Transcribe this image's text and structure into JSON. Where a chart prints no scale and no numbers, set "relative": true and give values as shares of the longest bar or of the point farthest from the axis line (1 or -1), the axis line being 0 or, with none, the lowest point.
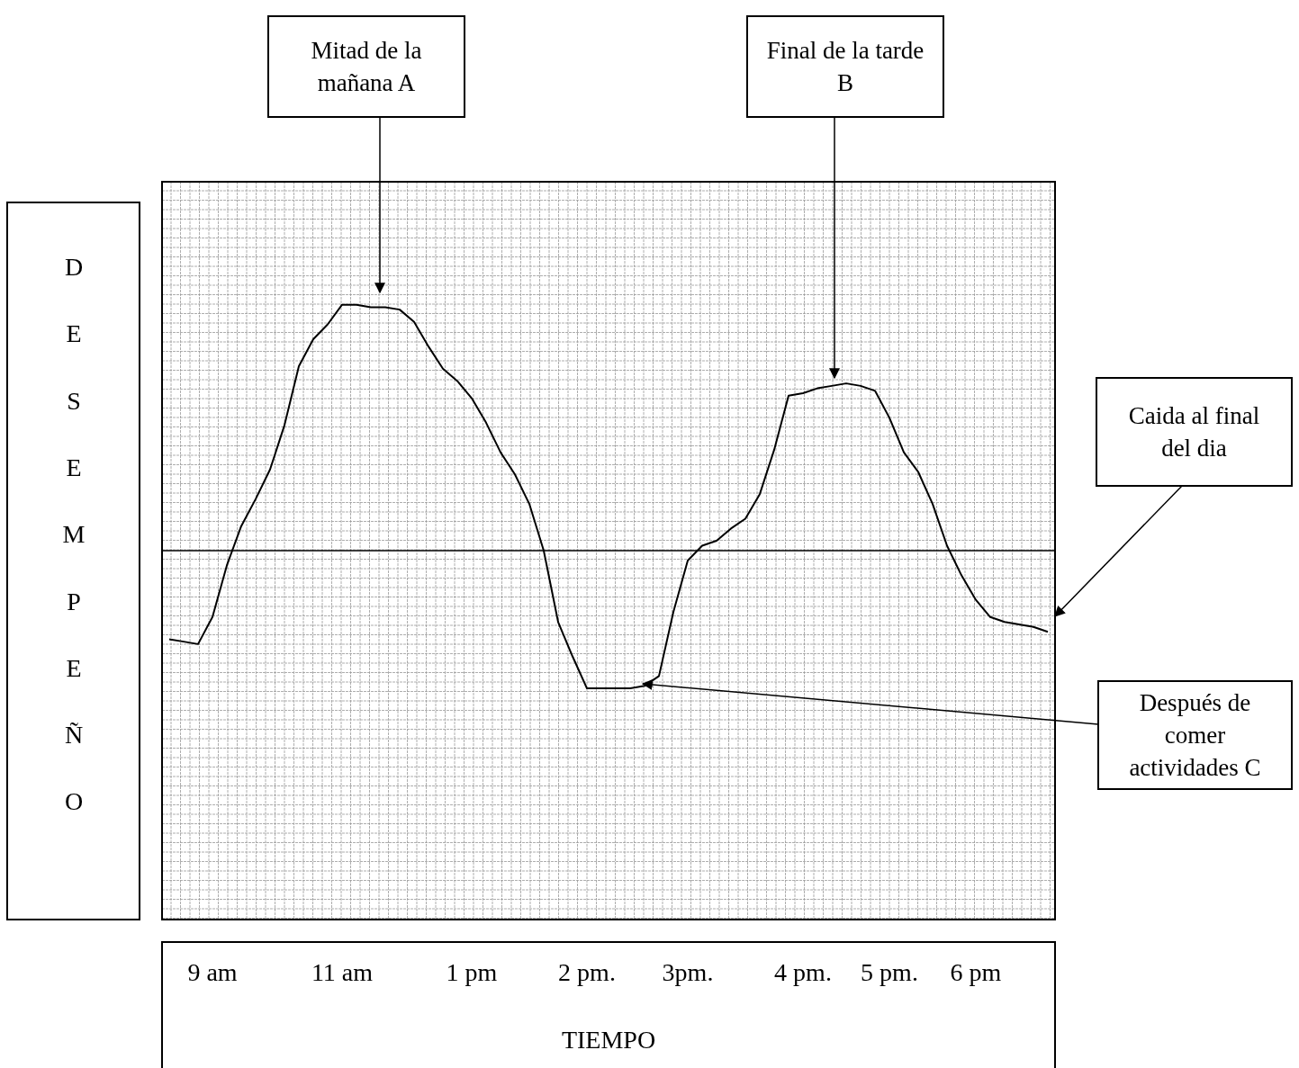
{
  "chart_data": {
    "type": "line",
    "relative": true,
    "xlabel": "TIEMPO",
    "ylabel": "DESEMPEÑO",
    "grid": true,
    "marker": "none",
    "line_style": "solid",
    "color": "#000000",
    "categories": [
      null,
      null,
      null,
      "9 am",
      null,
      null,
      null,
      null,
      null,
      null,
      null,
      null,
      "11 am",
      null,
      null,
      null,
      null,
      null,
      null,
      null,
      null,
      "1 pm",
      null,
      null,
      null,
      null,
      null,
      null,
      null,
      "2 pm.",
      null,
      null,
      null,
      null,
      null,
      null,
      "3pm.",
      null,
      null,
      null,
      null,
      null,
      null,
      null,
      "4 pm.",
      null,
      null,
      null,
      null,
      null,
      "5 pm.",
      null,
      null,
      null,
      null,
      null,
      "6 pm",
      null,
      null,
      null,
      null,
      null
    ],
    "values": [
      -0.36,
      -0.37,
      -0.38,
      -0.27,
      -0.06,
      0.1,
      0.21,
      0.33,
      0.51,
      0.75,
      0.86,
      0.92,
      1.0,
      1.0,
      0.99,
      0.99,
      0.98,
      0.93,
      0.83,
      0.74,
      0.69,
      0.62,
      0.52,
      0.4,
      0.31,
      0.19,
      0.0,
      -0.29,
      -0.43,
      -0.56,
      -0.56,
      -0.56,
      -0.56,
      -0.55,
      -0.51,
      -0.25,
      -0.04,
      0.02,
      0.04,
      0.09,
      0.13,
      0.23,
      0.41,
      0.63,
      0.64,
      0.66,
      0.67,
      0.68,
      0.67,
      0.65,
      0.54,
      0.4,
      0.32,
      0.19,
      0.02,
      -0.1,
      -0.2,
      -0.27,
      -0.29,
      -0.3,
      -0.31,
      -0.33
    ],
    "annotations": [
      "Mitad de la mañana A",
      "Final de la tarde  B",
      "Caida al final del dia",
      "Después de comer actividades C"
    ]
  }
}
